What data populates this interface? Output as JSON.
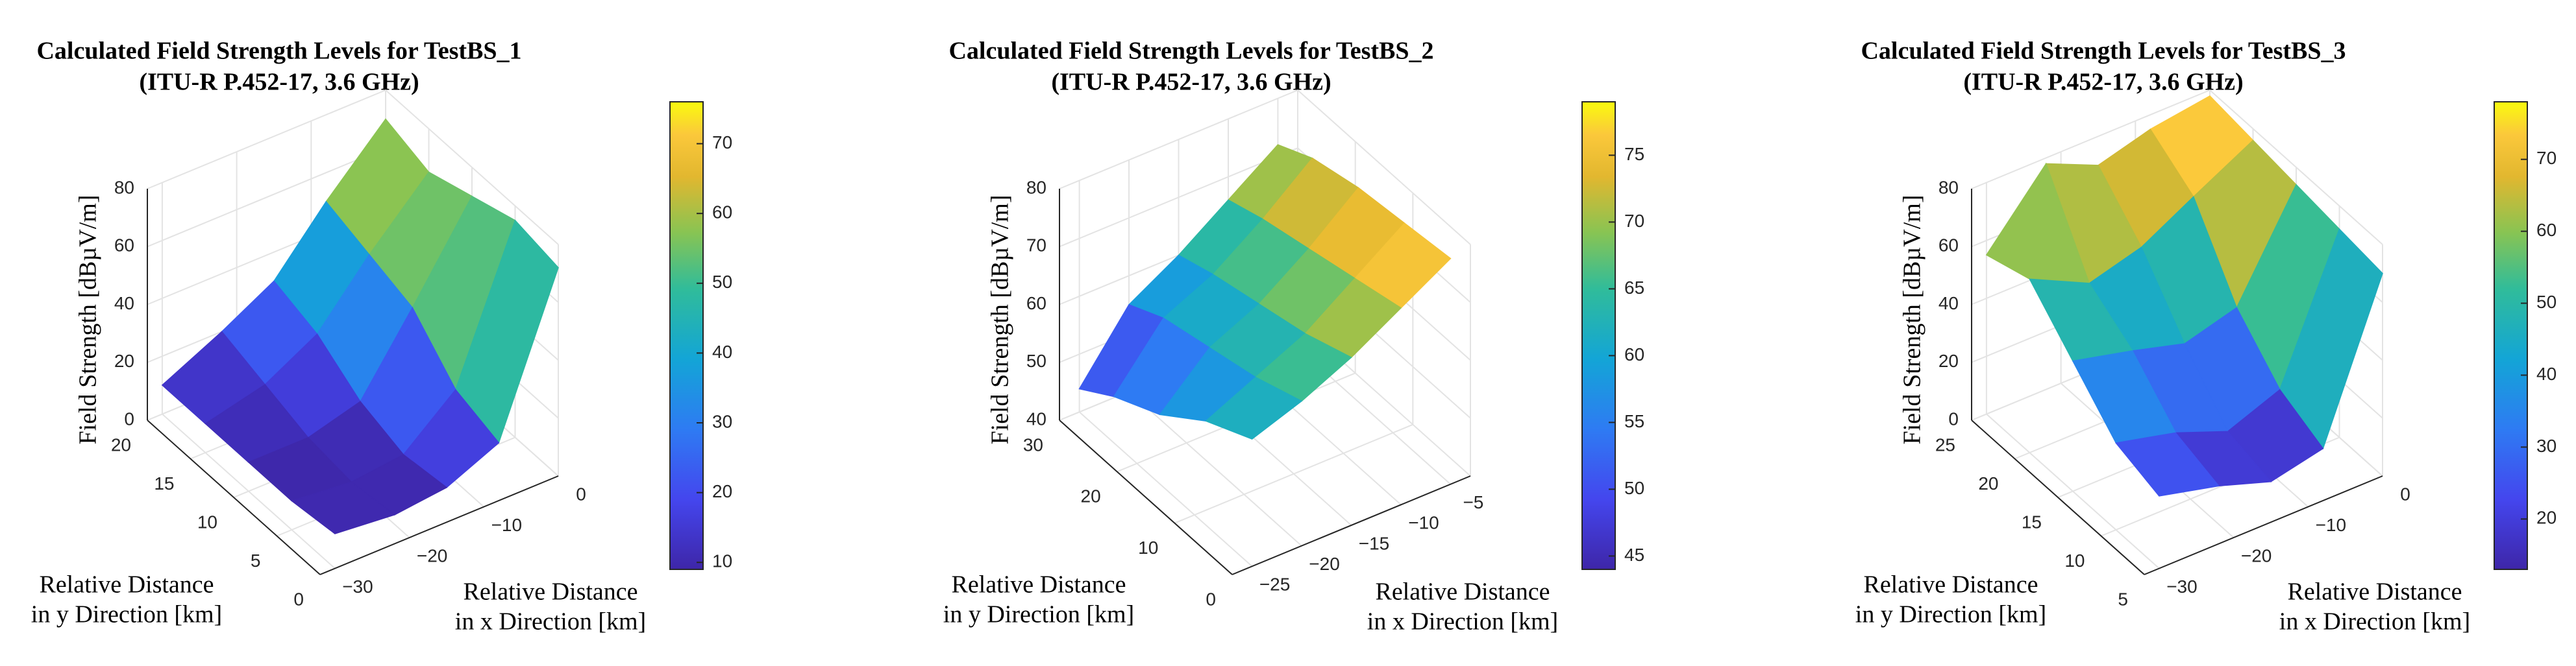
{
  "chart_data": [
    {
      "type": "surface",
      "colormap": "parula",
      "title": [
        "Calculated Field Strength Levels for TestBS_1",
        "(ITU-R P.452-17, 3.6 GHz)"
      ],
      "xlabel": [
        "Relative Distance",
        "in x Direction [km]"
      ],
      "ylabel": [
        "Relative Distance",
        "in y Direction [km]"
      ],
      "zlabel": "Field Strength [dBµV/m]",
      "x": [
        -30,
        -22,
        -15,
        -8,
        0
      ],
      "y": [
        0,
        5,
        10,
        15,
        20
      ],
      "z": [
        [
          12,
          10,
          12,
          20,
          72
        ],
        [
          10,
          8,
          10,
          25,
          75
        ],
        [
          10,
          10,
          15,
          40,
          70
        ],
        [
          10,
          15,
          25,
          45,
          65
        ],
        [
          10,
          20,
          30,
          50,
          70
        ]
      ],
      "xlim": [
        -32,
        0
      ],
      "ylim": [
        0,
        20
      ],
      "zlim": [
        0,
        80
      ],
      "xticks": [
        {
          "value": -30,
          "label": "−30"
        },
        {
          "value": -20,
          "label": "−20"
        },
        {
          "value": -10,
          "label": "−10"
        },
        0
      ],
      "yticks": [
        0,
        5,
        10,
        15,
        20
      ],
      "zticks": [
        0,
        20,
        40,
        60,
        80
      ],
      "clim": [
        9,
        76
      ],
      "cticks": [
        10,
        20,
        30,
        40,
        50,
        60,
        70
      ]
    },
    {
      "type": "surface",
      "colormap": "parula",
      "title": [
        "Calculated Field Strength Levels for TestBS_2",
        "(ITU-R P.452-17, 3.6 GHz)"
      ],
      "xlabel": [
        "Relative Distance",
        "in x Direction [km]"
      ],
      "ylabel": [
        "Relative Distance",
        "in y Direction [km]"
      ],
      "zlabel": "Field Strength [dBµV/m]",
      "x": [
        -25,
        -20,
        -15,
        -10,
        -5
      ],
      "y": [
        0,
        8,
        16,
        24,
        30
      ],
      "z": [
        [
          62,
          65,
          69,
          74,
          79
        ],
        [
          58,
          62,
          66,
          72,
          78
        ],
        [
          52,
          60,
          64,
          70,
          77
        ],
        [
          48,
          58,
          62,
          68,
          75
        ],
        [
          44,
          55,
          60,
          66,
          72
        ]
      ],
      "xlim": [
        -27,
        -3
      ],
      "ylim": [
        0,
        30
      ],
      "zlim": [
        40,
        80
      ],
      "xticks": [
        {
          "value": -25,
          "label": "−25"
        },
        {
          "value": -20,
          "label": "−20"
        },
        {
          "value": -15,
          "label": "−15"
        },
        {
          "value": -10,
          "label": "−10"
        },
        {
          "value": -5,
          "label": "−5"
        }
      ],
      "yticks": [
        0,
        10,
        20,
        30
      ],
      "zticks": [
        40,
        50,
        60,
        70,
        80
      ],
      "clim": [
        44,
        79
      ],
      "cticks": [
        45,
        50,
        55,
        60,
        65,
        70,
        75
      ]
    },
    {
      "type": "surface",
      "colormap": "parula",
      "title": [
        "Calculated Field Strength Levels for TestBS_3",
        "(ITU-R P.452-17, 3.6 GHz)"
      ],
      "xlabel": [
        "Relative Distance",
        "in x Direction [km]"
      ],
      "ylabel": [
        "Relative Distance",
        "in y Direction [km]"
      ],
      "zlabel": "Field Strength [dBµV/m]",
      "x": [
        -30,
        -22,
        -15,
        -8,
        0
      ],
      "y": [
        5,
        10,
        15,
        20,
        25
      ],
      "z": [
        [
          25,
          20,
          14,
          18,
          70
        ],
        [
          30,
          25,
          18,
          25,
          72
        ],
        [
          45,
          40,
          35,
          40,
          74
        ],
        [
          60,
          50,
          55,
          65,
          76
        ],
        [
          55,
          78,
          70,
          75,
          78
        ]
      ],
      "xlim": [
        -32,
        0
      ],
      "ylim": [
        5,
        25
      ],
      "zlim": [
        0,
        80
      ],
      "xticks": [
        {
          "value": -30,
          "label": "−30"
        },
        {
          "value": -20,
          "label": "−20"
        },
        {
          "value": -10,
          "label": "−10"
        },
        0
      ],
      "yticks": [
        5,
        10,
        15,
        20,
        25
      ],
      "zticks": [
        0,
        20,
        40,
        60,
        80
      ],
      "clim": [
        13,
        78
      ],
      "cticks": [
        20,
        30,
        40,
        50,
        60,
        70
      ]
    }
  ]
}
